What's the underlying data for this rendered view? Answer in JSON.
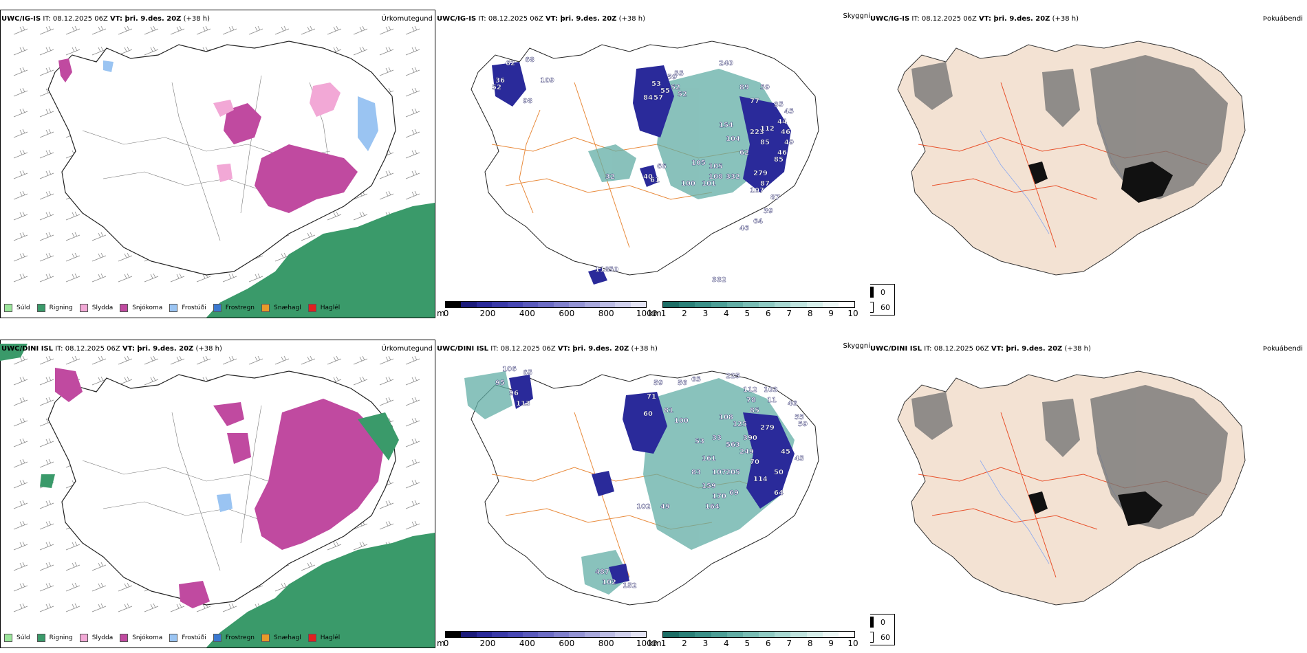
{
  "rows": [
    {
      "precip": {
        "header_model": "UWC/IG-IS",
        "header_rest": " IT: 08.12.2025 06Z ",
        "header_vt": "VT: þri. 9.des. 20Z",
        "header_lead": " (+38 h)",
        "right_label": "Úrkomutegund"
      },
      "vis": {
        "header_model": "UWC/IG-IS",
        "header_rest": " IT: 08.12.2025 06Z ",
        "header_vt": "VT: þri. 9.des. 20Z",
        "header_lead": " (+38 h)",
        "right_label": "Skyggni"
      },
      "fog": {
        "header_model": "UWC/IG-IS",
        "header_rest": " IT: 08.12.2025 06Z ",
        "header_vt": "VT: þri. 9.des. 20Z",
        "header_lead": " (+38 h)",
        "right_label": "Þokuábendi"
      },
      "vis_labels": [
        "62",
        "68",
        "36",
        "109",
        "98",
        "52",
        "57",
        "55",
        "53",
        "55",
        "84",
        "52",
        "59",
        "52",
        "240",
        "89",
        "59",
        "77",
        "35",
        "45",
        "44",
        "46",
        "49",
        "46",
        "154",
        "104",
        "223",
        "112",
        "85",
        "85",
        "62",
        "279",
        "87",
        "107",
        "87",
        "39",
        "64",
        "46",
        "332",
        "108",
        "101",
        "105",
        "105",
        "66",
        "61",
        "40",
        "332",
        "50",
        "118",
        "100",
        "32"
      ]
    },
    {
      "precip": {
        "header_model": "UWC/DINI ISL",
        "header_rest": " IT: 08.12.2025 06Z ",
        "header_vt": "VT: þri. 9.des. 20Z",
        "header_lead": " (+38 h)",
        "right_label": "Úrkomutegund"
      },
      "vis": {
        "header_model": "UWC/DINI ISL",
        "header_rest": " IT: 08.12.2025 06Z ",
        "header_vt": "VT: þri. 9.des. 20Z",
        "header_lead": " (+38 h)",
        "right_label": "Skyggni"
      },
      "fog": {
        "header_model": "UWC/DINI ISL",
        "header_rest": " IT: 08.12.2025 06Z ",
        "header_vt": "VT: þri. 9.des. 20Z",
        "header_lead": " (+38 h)",
        "right_label": "Þokuábendi"
      },
      "vis_labels": [
        "106",
        "65",
        "95",
        "96",
        "113",
        "59",
        "71",
        "60",
        "81",
        "100",
        "56",
        "65",
        "225",
        "112",
        "103",
        "78",
        "11",
        "46",
        "85",
        "55",
        "59",
        "108",
        "125",
        "390",
        "279",
        "33",
        "249",
        "53",
        "563",
        "161",
        "70",
        "45",
        "83",
        "107",
        "205",
        "114",
        "50",
        "159",
        "170",
        "69",
        "64",
        "164",
        "49",
        "102",
        "487",
        "102",
        "152",
        "45"
      ]
    }
  ],
  "precip_legend": [
    {
      "label": "Súld",
      "color": "#9be59b"
    },
    {
      "label": "Rigning",
      "color": "#3a9a6a"
    },
    {
      "label": "Slydda",
      "color": "#f2a8d6"
    },
    {
      "label": "Snjókoma",
      "color": "#c04aa0"
    },
    {
      "label": "Frostúði",
      "color": "#9ac4f2"
    },
    {
      "label": "Frostregn",
      "color": "#3a78d0"
    },
    {
      "label": "Snæhagl",
      "color": "#e89a2a"
    },
    {
      "label": "Haglél",
      "color": "#e02020"
    }
  ],
  "ceiling_bar": {
    "unit": "m",
    "ticks": [
      "0",
      "200",
      "400",
      "600",
      "800",
      "1000"
    ],
    "colors": [
      "#000000",
      "#1a1a7a",
      "#2a2a9a",
      "#3a3aa8",
      "#4848b4",
      "#5a5abc",
      "#6c6cc4",
      "#8080cc",
      "#9494d4",
      "#a8a8dc",
      "#bcbce4",
      "#d0d0ec",
      "#e4e4f4"
    ]
  },
  "vis_bar": {
    "unit": "km",
    "ticks": [
      "1",
      "2",
      "3",
      "4",
      "5",
      "6",
      "7",
      "8",
      "9",
      "10"
    ],
    "colors": [
      "#1d6e66",
      "#2a8078",
      "#3a9088",
      "#4c9e96",
      "#62ada5",
      "#78bcb4",
      "#8fcac3",
      "#a7d7d1",
      "#bfe3de",
      "#d6eeea",
      "#ecf7f5",
      "#ffffff"
    ]
  },
  "fog_legend": [
    {
      "label": "0",
      "color": "#000000"
    },
    {
      "label": "60",
      "color": "#ffffff"
    }
  ]
}
